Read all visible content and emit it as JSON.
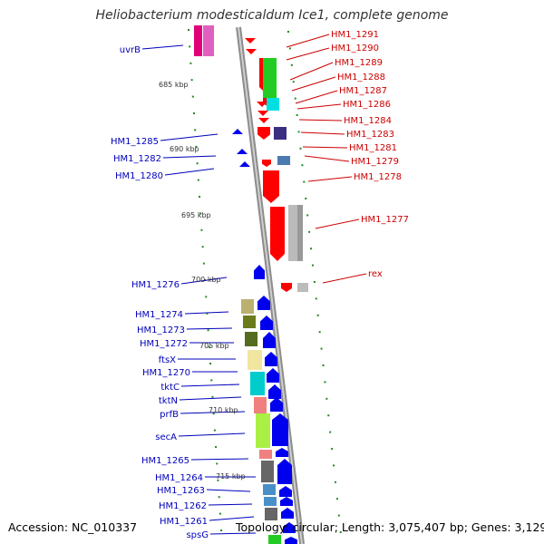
{
  "header": {
    "title": "Heliobacterium modesticaldum Ice1, complete genome"
  },
  "footer": {
    "accession": "Accession: NC_010337",
    "summary": "Topology: circular; Length: 3,075,407 bp; Genes: 3,129"
  },
  "colors": {
    "backbone": "#8c8c8c",
    "forward_label": "#cc0000",
    "reverse_label": "#0000bb",
    "ticks": "#228b22",
    "scale_text": "#333333"
  },
  "scale_labels": [
    "685 kbp",
    "690 kbp",
    "695 kbp",
    "700 kbp",
    "705 kbp",
    "710 kbp",
    "715 kbp"
  ],
  "forward_labels": [
    "HM1_1291",
    "HM1_1290",
    "HM1_1289",
    "HM1_1288",
    "HM1_1287",
    "HM1_1286",
    "HM1_1284",
    "HM1_1283",
    "HM1_1281",
    "HM1_1279",
    "HM1_1278",
    "HM1_1277",
    "rex"
  ],
  "reverse_labels": [
    "uvrB",
    "HM1_1285",
    "HM1_1282",
    "HM1_1280",
    "HM1_1276",
    "HM1_1274",
    "HM1_1273",
    "HM1_1272",
    "ftsX",
    "HM1_1270",
    "tktC",
    "tktN",
    "prfB",
    "secA",
    "HM1_1265",
    "HM1_1264",
    "HM1_1263",
    "HM1_1262",
    "HM1_1261",
    "spsG"
  ],
  "genes": [
    {
      "strand": "reverse",
      "ring": "cog",
      "color": "#e0007a"
    },
    {
      "strand": "reverse",
      "ring": "gene",
      "color": "#e060c0"
    },
    {
      "strand": "forward",
      "ring": "gene",
      "color": "#ff0000"
    },
    {
      "strand": "forward",
      "ring": "cog",
      "color": "#22cc22"
    },
    {
      "strand": "forward",
      "ring": "cog",
      "color": "#00e0e0"
    },
    {
      "strand": "forward",
      "ring": "cog",
      "color": "#3a2e80"
    },
    {
      "strand": "forward",
      "ring": "cog",
      "color": "#4a7ab0"
    },
    {
      "strand": "forward",
      "ring": "cog",
      "color": "#bbbbbb"
    },
    {
      "strand": "forward",
      "ring": "cog",
      "color": "#999999"
    },
    {
      "strand": "reverse",
      "ring": "gene",
      "color": "#0000ee"
    },
    {
      "strand": "reverse",
      "ring": "cog",
      "color": "#bbb070"
    },
    {
      "strand": "reverse",
      "ring": "cog",
      "color": "#6b7a1a"
    },
    {
      "strand": "reverse",
      "ring": "cog",
      "color": "#556b1f"
    },
    {
      "strand": "reverse",
      "ring": "cog",
      "color": "#f0e6a0"
    },
    {
      "strand": "reverse",
      "ring": "cog",
      "color": "#00cccc"
    },
    {
      "strand": "reverse",
      "ring": "cog",
      "color": "#f08080"
    },
    {
      "strand": "reverse",
      "ring": "cog",
      "color": "#aaf044"
    },
    {
      "strand": "reverse",
      "ring": "cog",
      "color": "#666666"
    },
    {
      "strand": "reverse",
      "ring": "cog",
      "color": "#4a90c8"
    }
  ]
}
